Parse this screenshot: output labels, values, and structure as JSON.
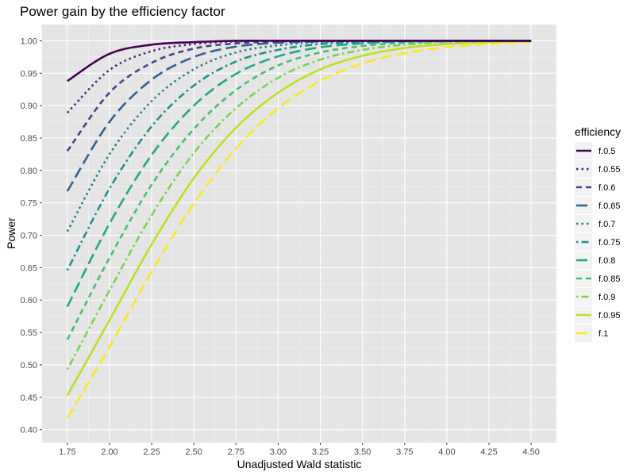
{
  "chart_data": {
    "type": "line",
    "title": "Power gain by the efficiency factor",
    "xlabel": "Unadjusted Wald statistic",
    "ylabel": "Power",
    "xlim": [
      1.6,
      4.65
    ],
    "ylim": [
      0.38,
      1.025
    ],
    "x_ticks": [
      1.75,
      2.0,
      2.25,
      2.5,
      2.75,
      3.0,
      3.25,
      3.5,
      3.75,
      4.0,
      4.25,
      4.5
    ],
    "x_tick_labels": [
      "1.75",
      "2.00",
      "2.25",
      "2.50",
      "2.75",
      "3.00",
      "3.25",
      "3.50",
      "3.75",
      "4.00",
      "4.25",
      "4.50"
    ],
    "y_ticks": [
      0.4,
      0.45,
      0.5,
      0.55,
      0.6,
      0.65,
      0.7,
      0.75,
      0.8,
      0.85,
      0.9,
      0.95,
      1.0
    ],
    "y_tick_labels": [
      "0.40",
      "0.45",
      "0.50",
      "0.55",
      "0.60",
      "0.65",
      "0.70",
      "0.75",
      "0.80",
      "0.85",
      "0.90",
      "0.95",
      "1.00"
    ],
    "grid": true,
    "background": "#e5e5e5",
    "legend": {
      "title": "efficiency",
      "position": "right"
    },
    "x": [
      1.75,
      2.0,
      2.25,
      2.5,
      2.75,
      3.0,
      3.25,
      3.5,
      3.75,
      4.0,
      4.25,
      4.5
    ],
    "series": [
      {
        "name": "f.0.5",
        "color": "#440154",
        "dash": "solid",
        "values": [
          0.938,
          0.98,
          0.994,
          0.998,
          1.0,
          1.0,
          1.0,
          1.0,
          1.0,
          1.0,
          1.0,
          1.0
        ]
      },
      {
        "name": "f.0.55",
        "color": "#482576",
        "dash": "dotted",
        "values": [
          0.889,
          0.955,
          0.984,
          0.995,
          0.999,
          1.0,
          1.0,
          1.0,
          1.0,
          1.0,
          1.0,
          1.0
        ]
      },
      {
        "name": "f.0.6",
        "color": "#414487",
        "dash": "dashed",
        "values": [
          0.83,
          0.92,
          0.966,
          0.988,
          0.996,
          0.999,
          1.0,
          1.0,
          1.0,
          1.0,
          1.0,
          1.0
        ]
      },
      {
        "name": "f.0.65",
        "color": "#35608d",
        "dash": "longdash",
        "values": [
          0.768,
          0.875,
          0.94,
          0.975,
          0.991,
          0.997,
          0.999,
          1.0,
          1.0,
          1.0,
          1.0,
          1.0
        ]
      },
      {
        "name": "f.0.7",
        "color": "#2a788e",
        "dash": "dotted",
        "values": [
          0.706,
          0.825,
          0.907,
          0.956,
          0.982,
          0.993,
          0.998,
          0.999,
          1.0,
          1.0,
          1.0,
          1.0
        ]
      },
      {
        "name": "f.0.75",
        "color": "#21908d",
        "dash": "dotdash",
        "values": [
          0.646,
          0.772,
          0.868,
          0.931,
          0.968,
          0.986,
          0.995,
          0.998,
          0.999,
          1.0,
          1.0,
          1.0
        ]
      },
      {
        "name": "f.0.8",
        "color": "#22a884",
        "dash": "longdash",
        "values": [
          0.59,
          0.718,
          0.824,
          0.9,
          0.949,
          0.976,
          0.99,
          0.996,
          0.999,
          1.0,
          1.0,
          1.0
        ]
      },
      {
        "name": "f.0.85",
        "color": "#43bf71",
        "dash": "dashed",
        "values": [
          0.539,
          0.665,
          0.778,
          0.864,
          0.924,
          0.962,
          0.982,
          0.992,
          0.997,
          0.999,
          1.0,
          1.0
        ]
      },
      {
        "name": "f.0.9",
        "color": "#7ad151",
        "dash": "dotdash",
        "values": [
          0.493,
          0.615,
          0.731,
          0.827,
          0.896,
          0.943,
          0.971,
          0.986,
          0.994,
          0.998,
          0.999,
          1.0
        ]
      },
      {
        "name": "f.0.95",
        "color": "#bddf26",
        "dash": "solid",
        "values": [
          0.453,
          0.569,
          0.686,
          0.788,
          0.866,
          0.92,
          0.956,
          0.977,
          0.989,
          0.995,
          0.998,
          0.999
        ]
      },
      {
        "name": "f.1",
        "color": "#fde725",
        "dash": "longdash",
        "values": [
          0.418,
          0.528,
          0.644,
          0.749,
          0.834,
          0.896,
          0.938,
          0.965,
          0.981,
          0.99,
          0.995,
          0.998
        ]
      }
    ]
  }
}
